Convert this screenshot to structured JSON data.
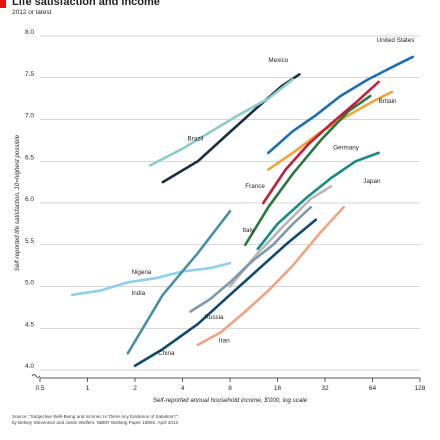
{
  "header": {
    "title": "Life satisfaction and income",
    "subtitle": "2012 or latest"
  },
  "colors": {
    "brand_red": "#e3120b",
    "axis": "#231f20",
    "grid": "#b0b0b0"
  },
  "source": {
    "line1": "Source: \"Subjective Well-Being and Income: Is There Any Evidence of Satiation?\",",
    "line2": "by Betsey Stevenson and Justin Wolfers. NBER Working Paper 18992. April 2013"
  },
  "chart_data": {
    "type": "line",
    "title": "Life satisfaction and income",
    "subtitle": "2012 or latest",
    "xlabel": "Self-reported annual household income, $'000, log scale",
    "ylabel": "Self-reported life satisfaction, 10=highest possible",
    "x_scale": "log2",
    "xlim": [
      0.5,
      128
    ],
    "ylim": [
      4.0,
      8.0
    ],
    "x_ticks": [
      0.5,
      1,
      2,
      4,
      8,
      16,
      32,
      64,
      128
    ],
    "x_tick_labels": [
      "0.5",
      "1",
      "2",
      "4",
      "8",
      "16",
      "32",
      "64",
      "128"
    ],
    "y_ticks": [
      4.0,
      4.5,
      5.0,
      5.5,
      6.0,
      6.5,
      7.0,
      7.5,
      8.0
    ],
    "y_tick_labels": [
      "4.0",
      "4.5",
      "5.0",
      "5.5",
      "6.0",
      "6.5",
      "7.0",
      "7.5",
      "8.0"
    ],
    "grid": "horizontal",
    "legend": "none",
    "series": [
      {
        "name": "United States",
        "color": "#1a6fb5",
        "label_at": [
          68,
          7.93
        ],
        "x": [
          14,
          20,
          28,
          40,
          60,
          90,
          115
        ],
        "y": [
          6.6,
          6.86,
          7.05,
          7.28,
          7.48,
          7.65,
          7.75
        ]
      },
      {
        "name": "Mexico",
        "color": "#1a2e40",
        "label_at": [
          14,
          7.69
        ],
        "x": [
          3,
          5,
          8,
          12,
          17,
          22
        ],
        "y": [
          6.25,
          6.5,
          6.85,
          7.15,
          7.4,
          7.54
        ]
      },
      {
        "name": "Britain",
        "color": "#f0a53a",
        "label_at": [
          70,
          7.2
        ],
        "x": [
          14,
          20,
          30,
          45,
          65,
          85
        ],
        "y": [
          6.4,
          6.6,
          6.85,
          7.05,
          7.22,
          7.33
        ]
      },
      {
        "name": "Brazil",
        "color": "#8ccbc8",
        "label_at": [
          4.3,
          6.75
        ],
        "x": [
          2.5,
          4,
          6,
          9,
          14,
          20
        ],
        "y": [
          6.45,
          6.65,
          6.85,
          7.05,
          7.25,
          7.48
        ]
      },
      {
        "name": "Germany",
        "color": "#29783d",
        "label_at": [
          36,
          6.64
        ],
        "x": [
          10,
          14,
          20,
          30,
          45,
          62
        ],
        "y": [
          5.5,
          5.95,
          6.35,
          6.75,
          7.1,
          7.28
        ]
      },
      {
        "name": "France",
        "color": "#c41e3a",
        "label_at": [
          10,
          6.18
        ],
        "x": [
          13,
          18,
          25,
          35,
          50,
          70
        ],
        "y": [
          6.0,
          6.4,
          6.7,
          6.95,
          7.2,
          7.45
        ]
      },
      {
        "name": "Japan",
        "color": "#178b86",
        "label_at": [
          56,
          6.24
        ],
        "x": [
          12,
          16,
          24,
          35,
          50,
          70
        ],
        "y": [
          5.45,
          5.75,
          6.05,
          6.3,
          6.5,
          6.6
        ]
      },
      {
        "name": "Italy",
        "color": "#b7b7b7",
        "label_at": [
          9.6,
          5.65
        ],
        "x": [
          8,
          12,
          18,
          26,
          35
        ],
        "y": [
          5.0,
          5.4,
          5.75,
          6.05,
          6.2
        ]
      },
      {
        "name": "Nigeria",
        "color": "#8fcfec",
        "label_at": [
          1.9,
          5.15
        ],
        "x": [
          0.8,
          1.2,
          1.8,
          2.7,
          4,
          6,
          8
        ],
        "y": [
          4.9,
          4.95,
          5.05,
          5.1,
          5.18,
          5.22,
          5.28
        ]
      },
      {
        "name": "India",
        "color": "#4a8fa3",
        "label_at": [
          1.9,
          4.9
        ],
        "x": [
          1.8,
          3,
          5,
          8
        ],
        "y": [
          4.2,
          4.9,
          5.4,
          5.9
        ]
      },
      {
        "name": "Russia",
        "color": "#7f98aa",
        "label_at": [
          5.5,
          4.61
        ],
        "x": [
          4.5,
          6,
          8,
          11,
          15,
          20,
          26
        ],
        "y": [
          4.7,
          4.85,
          5.05,
          5.3,
          5.5,
          5.75,
          5.95
        ]
      },
      {
        "name": "China",
        "color": "#0f4a6e",
        "label_at": [
          2.8,
          4.18
        ],
        "x": [
          2,
          3,
          5,
          8,
          12,
          18,
          28
        ],
        "y": [
          4.05,
          4.25,
          4.55,
          4.9,
          5.2,
          5.5,
          5.8
        ]
      },
      {
        "name": "Iran",
        "color": "#f0a37f",
        "label_at": [
          6.8,
          4.33
        ],
        "x": [
          5,
          7,
          10,
          14,
          20,
          30,
          42
        ],
        "y": [
          4.3,
          4.45,
          4.7,
          4.95,
          5.25,
          5.65,
          5.95
        ]
      }
    ]
  }
}
